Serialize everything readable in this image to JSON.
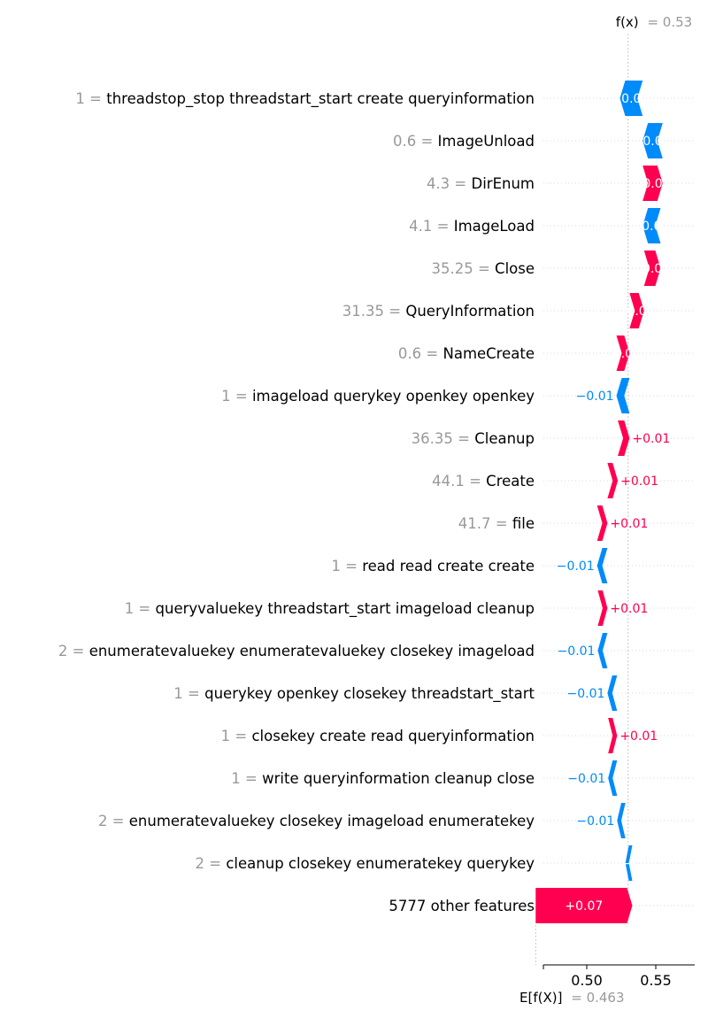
{
  "chart_data": {
    "type": "waterfall",
    "fx_label": "f(x)",
    "fx_value_text": "= 0.53",
    "fx": 0.53,
    "ex_label": "E[f(X)]",
    "ex_value_text": "= 0.463",
    "ex": 0.463,
    "xticks": [
      {
        "value": 0.5,
        "label": "0.50"
      },
      {
        "value": 0.55,
        "label": "0.55"
      }
    ],
    "colors": {
      "positive": "#ff0051",
      "negative": "#008bfb",
      "muted": "#999999"
    },
    "features": [
      {
        "value": "1",
        "name": "threadstop_stop threadstart_start create queryinformation",
        "shap": -0.0165,
        "label": "0.0"
      },
      {
        "value": "0.6",
        "name": "ImageUnload",
        "shap": -0.0145,
        "label": "0.0"
      },
      {
        "value": "4.3",
        "name": "DirEnum",
        "shap": 0.0145,
        "label": "0.0"
      },
      {
        "value": "4.1",
        "name": "ImageLoad",
        "shap": -0.013,
        "label": "0.0"
      },
      {
        "value": "35.25",
        "name": "Close",
        "shap": 0.012,
        "label": "0.0"
      },
      {
        "value": "31.35",
        "name": "QueryInformation",
        "shap": 0.0105,
        "label": "0.0"
      },
      {
        "value": "0.6",
        "name": "NameCreate",
        "shap": 0.0095,
        "label": "0.0"
      },
      {
        "value": "1",
        "name": "imageload querykey openkey openkey",
        "shap": -0.0095,
        "label": "−0.01"
      },
      {
        "value": "36.35",
        "name": "Cleanup",
        "shap": 0.0085,
        "label": "+0.01"
      },
      {
        "value": "44.1",
        "name": "Create",
        "shap": 0.0075,
        "label": "+0.01"
      },
      {
        "value": "41.7",
        "name": "file",
        "shap": 0.0075,
        "label": "+0.01"
      },
      {
        "value": "1",
        "name": "read read create create",
        "shap": -0.0075,
        "label": "−0.01"
      },
      {
        "value": "1",
        "name": "queryvaluekey threadstart_start imageload cleanup",
        "shap": 0.007,
        "label": "+0.01"
      },
      {
        "value": "2",
        "name": "enumeratevaluekey enumeratevaluekey closekey imageload",
        "shap": -0.007,
        "label": "−0.01"
      },
      {
        "value": "1",
        "name": "querykey openkey closekey threadstart_start",
        "shap": -0.007,
        "label": "−0.01"
      },
      {
        "value": "1",
        "name": "closekey create read queryinformation",
        "shap": 0.0065,
        "label": "+0.01"
      },
      {
        "value": "1",
        "name": "write queryinformation cleanup close",
        "shap": -0.0065,
        "label": "−0.01"
      },
      {
        "value": "2",
        "name": "enumeratevaluekey closekey imageload enumeratekey",
        "shap": -0.006,
        "label": "−0.01"
      },
      {
        "value": "2",
        "name": "cleanup closekey enumeratekey querykey",
        "shap": -0.005,
        "label": "−"
      },
      {
        "value": "",
        "name": "5777 other features",
        "shap": 0.07,
        "label": "+0.07"
      }
    ]
  }
}
